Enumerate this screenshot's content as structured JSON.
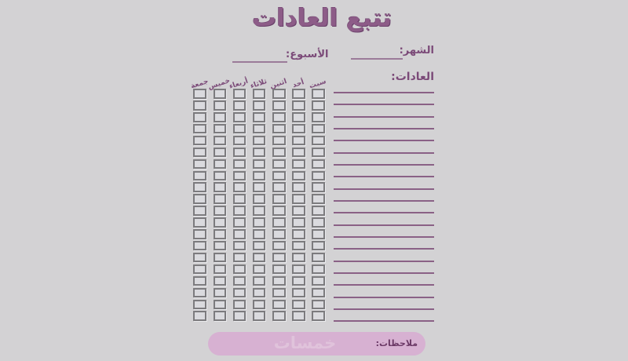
{
  "header": {
    "title": "تتبع العادات",
    "month_label": "الشهر:",
    "month_value": "",
    "week_label": "الأسبوع:",
    "week_value": ""
  },
  "habits": {
    "label": "العادات:",
    "line_count": 20,
    "entries": []
  },
  "tracker": {
    "day_headers": [
      "سبت",
      "أحد",
      "اثنين",
      "ثلاثاء",
      "أربعاء",
      "خميس",
      "جمعة"
    ],
    "rows": 20,
    "columns": 7,
    "checked_cells": []
  },
  "notes": {
    "label": "ملاحظات:",
    "watermark": "خمسات"
  },
  "colors": {
    "background": "#d3d2d4",
    "title": "#8d5c88",
    "title_outline": "#6a416a",
    "label": "#7b4a78",
    "thin_line": "#9b7b99",
    "habit_line": "#8a6186",
    "checkbox_border": "#7c7b7e",
    "checkbox_fill": "#dadade",
    "notes_bg": "#d7b1d2",
    "notes_label": "#6b3966",
    "watermark": "#e0c3db"
  }
}
